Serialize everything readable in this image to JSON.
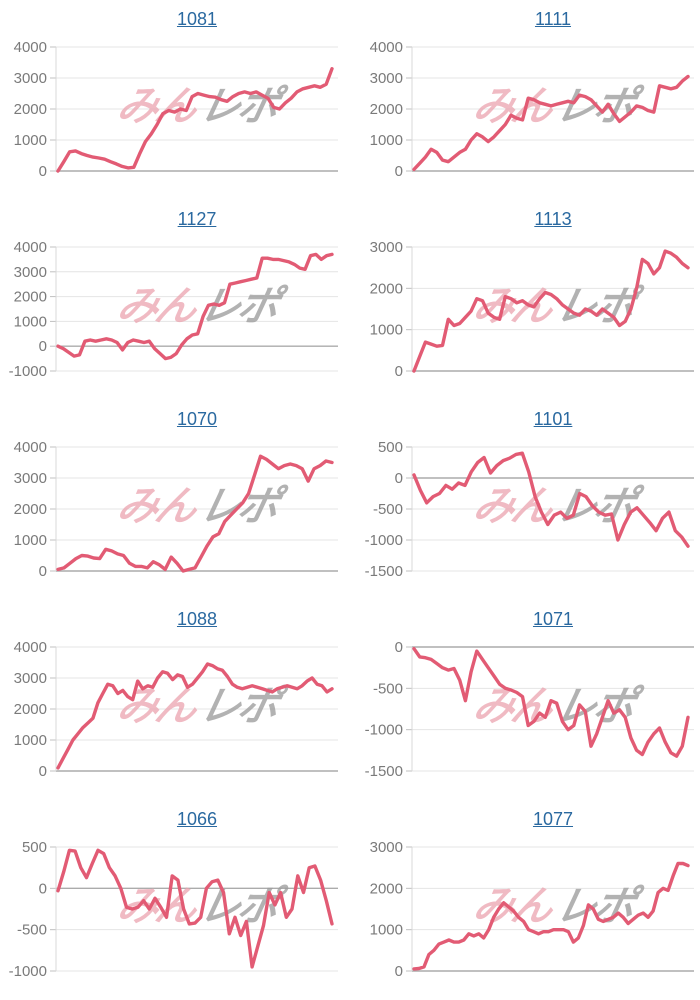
{
  "watermark": {
    "pink_text": "みん",
    "gray_text": "レポ"
  },
  "colors": {
    "line": "#e25b74",
    "title_link": "#2a69a0",
    "grid": "#e4e4e4",
    "zero_line": "#ababab",
    "axis_line": "#d8d8d8",
    "tick": "#c0c0c0",
    "axis_label": "#7a7a7a",
    "watermark_pink": "#eba4af",
    "watermark_gray": "#9d9d9d"
  },
  "chart_data": [
    {
      "type": "line",
      "title": "1081",
      "ylim": [
        0,
        4000
      ],
      "yticks": [
        0,
        1000,
        2000,
        3000,
        4000
      ],
      "values": [
        0,
        300,
        620,
        650,
        560,
        500,
        450,
        420,
        380,
        300,
        230,
        150,
        100,
        120,
        550,
        950,
        1200,
        1500,
        1850,
        1950,
        1900,
        2000,
        1950,
        2400,
        2500,
        2450,
        2400,
        2380,
        2300,
        2250,
        2400,
        2500,
        2550,
        2500,
        2550,
        2450,
        2350,
        2050,
        2000,
        2200,
        2350,
        2550,
        2650,
        2700,
        2750,
        2700,
        2800,
        3300
      ]
    },
    {
      "type": "line",
      "title": "1111",
      "ylim": [
        0,
        4000
      ],
      "yticks": [
        0,
        1000,
        2000,
        3000,
        4000
      ],
      "values": [
        50,
        250,
        450,
        700,
        600,
        350,
        300,
        450,
        600,
        700,
        1000,
        1200,
        1100,
        950,
        1100,
        1300,
        1500,
        1800,
        1700,
        1650,
        2350,
        2300,
        2200,
        2150,
        2100,
        2150,
        2200,
        2250,
        2200,
        2450,
        2400,
        2300,
        2100,
        1900,
        2150,
        1850,
        1600,
        1750,
        1900,
        2100,
        2050,
        1950,
        1900,
        2750,
        2700,
        2650,
        2700,
        2900,
        3050
      ]
    },
    {
      "type": "line",
      "title": "1127",
      "ylim": [
        -1000,
        4000
      ],
      "yticks": [
        -1000,
        0,
        1000,
        2000,
        3000,
        4000
      ],
      "values": [
        0,
        -100,
        -250,
        -400,
        -350,
        200,
        250,
        200,
        250,
        300,
        250,
        150,
        -150,
        150,
        250,
        200,
        150,
        200,
        -100,
        -300,
        -500,
        -450,
        -300,
        50,
        300,
        450,
        500,
        1200,
        1650,
        1700,
        1650,
        1750,
        2500,
        2550,
        2600,
        2650,
        2700,
        2750,
        3550,
        3550,
        3500,
        3500,
        3450,
        3400,
        3300,
        3150,
        3100,
        3650,
        3700,
        3500,
        3650,
        3700
      ]
    },
    {
      "type": "line",
      "title": "1113",
      "ylim": [
        0,
        3000
      ],
      "yticks": [
        0,
        1000,
        2000,
        3000
      ],
      "values": [
        0,
        350,
        700,
        650,
        600,
        620,
        1250,
        1100,
        1150,
        1300,
        1450,
        1750,
        1700,
        1400,
        1300,
        1250,
        1800,
        1750,
        1650,
        1700,
        1600,
        1550,
        1750,
        1900,
        1850,
        1750,
        1600,
        1500,
        1400,
        1350,
        1500,
        1450,
        1350,
        1500,
        1400,
        1300,
        1100,
        1200,
        1500,
        2000,
        2700,
        2600,
        2350,
        2500,
        2900,
        2850,
        2750,
        2600,
        2500
      ]
    },
    {
      "type": "line",
      "title": "1070",
      "ylim": [
        0,
        4000
      ],
      "yticks": [
        0,
        1000,
        2000,
        3000,
        4000
      ],
      "values": [
        50,
        100,
        250,
        400,
        500,
        480,
        420,
        400,
        700,
        650,
        550,
        500,
        250,
        150,
        150,
        100,
        300,
        200,
        50,
        450,
        250,
        0,
        50,
        100,
        450,
        800,
        1100,
        1200,
        1600,
        1800,
        2000,
        2200,
        2500,
        3100,
        3700,
        3600,
        3450,
        3300,
        3400,
        3450,
        3400,
        3300,
        2900,
        3300,
        3400,
        3550,
        3500
      ]
    },
    {
      "type": "line",
      "title": "1101",
      "ylim": [
        -1500,
        500
      ],
      "yticks": [
        -1500,
        -1000,
        -500,
        0,
        500
      ],
      "values": [
        50,
        -200,
        -400,
        -300,
        -250,
        -120,
        -180,
        -80,
        -120,
        100,
        250,
        330,
        80,
        200,
        280,
        320,
        380,
        400,
        100,
        -300,
        -550,
        -750,
        -600,
        -550,
        -650,
        -600,
        -250,
        -300,
        -450,
        -550,
        -600,
        -580,
        -1000,
        -750,
        -550,
        -480,
        -600,
        -720,
        -850,
        -650,
        -550,
        -850,
        -950,
        -1100
      ]
    },
    {
      "type": "line",
      "title": "1088",
      "ylim": [
        0,
        4000
      ],
      "yticks": [
        0,
        1000,
        2000,
        3000,
        4000
      ],
      "values": [
        100,
        400,
        700,
        1000,
        1200,
        1400,
        1550,
        1700,
        2200,
        2500,
        2800,
        2750,
        2500,
        2600,
        2400,
        2300,
        2900,
        2650,
        2750,
        2700,
        3000,
        3200,
        3150,
        2950,
        3100,
        3050,
        2700,
        2800,
        3000,
        3200,
        3450,
        3400,
        3300,
        3250,
        3050,
        2800,
        2700,
        2650,
        2700,
        2750,
        2700,
        2650,
        2600,
        2550,
        2650,
        2700,
        2750,
        2700,
        2650,
        2750,
        2900,
        3000,
        2800,
        2750,
        2550,
        2650
      ]
    },
    {
      "type": "line",
      "title": "1071",
      "ylim": [
        -1500,
        0
      ],
      "yticks": [
        -1500,
        -1000,
        -500,
        0
      ],
      "values": [
        -20,
        -120,
        -130,
        -150,
        -200,
        -250,
        -280,
        -260,
        -400,
        -650,
        -300,
        -50,
        -150,
        -250,
        -350,
        -450,
        -500,
        -520,
        -550,
        -600,
        -950,
        -900,
        -800,
        -850,
        -650,
        -680,
        -900,
        -1000,
        -950,
        -700,
        -780,
        -1200,
        -1050,
        -850,
        -650,
        -800,
        -760,
        -850,
        -1100,
        -1250,
        -1300,
        -1150,
        -1050,
        -980,
        -1150,
        -1280,
        -1320,
        -1200,
        -850
      ]
    },
    {
      "type": "line",
      "title": "1066",
      "ylim": [
        -1000,
        500
      ],
      "yticks": [
        -1000,
        -500,
        0,
        500
      ],
      "values": [
        -30,
        200,
        460,
        450,
        250,
        130,
        300,
        460,
        420,
        250,
        150,
        0,
        -230,
        -250,
        -230,
        -150,
        -250,
        -120,
        -230,
        -350,
        150,
        100,
        -250,
        -430,
        -420,
        -350,
        0,
        80,
        100,
        -50,
        -550,
        -350,
        -570,
        -400,
        -950,
        -700,
        -450,
        -50,
        -200,
        -50,
        -350,
        -250,
        150,
        -50,
        250,
        270,
        100,
        -150,
        -430
      ]
    },
    {
      "type": "line",
      "title": "1077",
      "ylim": [
        0,
        3000
      ],
      "yticks": [
        0,
        1000,
        2000,
        3000
      ],
      "values": [
        50,
        60,
        100,
        400,
        500,
        650,
        700,
        750,
        700,
        700,
        750,
        900,
        850,
        900,
        800,
        1000,
        1300,
        1500,
        1650,
        1550,
        1450,
        1300,
        1200,
        1000,
        950,
        900,
        950,
        950,
        1000,
        1000,
        1000,
        950,
        700,
        800,
        1100,
        1600,
        1500,
        1250,
        1200,
        1250,
        1300,
        1400,
        1300,
        1150,
        1250,
        1350,
        1400,
        1300,
        1450,
        1900,
        2000,
        1950,
        2300,
        2600,
        2600,
        2550
      ]
    }
  ]
}
